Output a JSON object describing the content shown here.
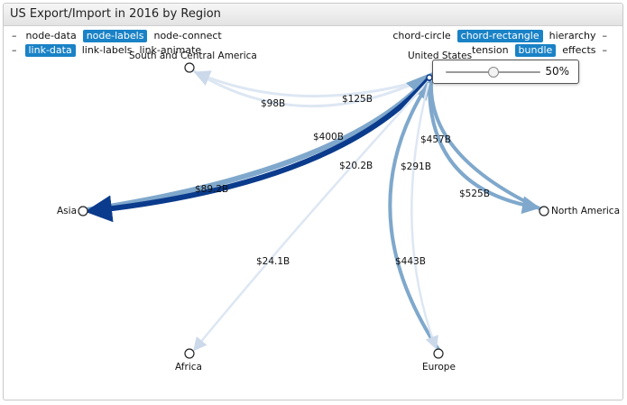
{
  "title": "US Export/Import in 2016 by Region",
  "toolbar": {
    "row1_left": [
      {
        "label": "–",
        "kind": "dash",
        "name": "collapse-toggle-1"
      },
      {
        "label": "node-data",
        "active": false,
        "name": "option-node-data"
      },
      {
        "label": "node-labels",
        "active": true,
        "name": "option-node-labels"
      },
      {
        "label": "node-connect",
        "active": false,
        "name": "option-node-connect"
      }
    ],
    "row2_left": [
      {
        "label": "–",
        "kind": "dash",
        "name": "collapse-toggle-2"
      },
      {
        "label": "link-data",
        "active": true,
        "name": "option-link-data"
      },
      {
        "label": "link-labels",
        "active": false,
        "name": "option-link-labels"
      },
      {
        "label": "link-animate",
        "active": false,
        "name": "option-link-animate"
      }
    ],
    "row1_right": [
      {
        "label": "chord-circle",
        "active": false,
        "name": "option-chord-circle"
      },
      {
        "label": "chord-rectangle",
        "active": true,
        "name": "option-chord-rectangle"
      },
      {
        "label": "hierarchy",
        "active": false,
        "name": "option-hierarchy"
      },
      {
        "label": "–",
        "kind": "dash",
        "name": "collapse-toggle-3"
      }
    ],
    "row2_right": [
      {
        "label": "tension",
        "active": false,
        "name": "option-tension"
      },
      {
        "label": "bundle",
        "active": true,
        "name": "option-bundle"
      },
      {
        "label": "effects",
        "active": false,
        "name": "option-effects"
      },
      {
        "label": "–",
        "kind": "dash",
        "name": "collapse-toggle-4"
      }
    ]
  },
  "tension": {
    "value": 0.5,
    "label": "50%"
  },
  "colors": {
    "export_link": "#0b3b8c",
    "import_link": "#7fa8cc",
    "light_link": "#dde7f3",
    "active_option": "#1a82c6"
  },
  "nodes": [
    {
      "id": "us",
      "name": "United States"
    },
    {
      "id": "sca",
      "name": "South and Central America"
    },
    {
      "id": "asia",
      "name": "Asia"
    },
    {
      "id": "na",
      "name": "North America"
    },
    {
      "id": "africa",
      "name": "Africa"
    },
    {
      "id": "europe",
      "name": "Europe"
    }
  ],
  "links": [
    {
      "label": "$98B"
    },
    {
      "label": "$125B"
    },
    {
      "label": "$400B"
    },
    {
      "label": "$20.2B"
    },
    {
      "label": "$457B"
    },
    {
      "label": "$291B"
    },
    {
      "label": "$525B"
    },
    {
      "label": "$24.1B"
    },
    {
      "label": "$443B"
    },
    {
      "label": "$89.2B"
    }
  ]
}
